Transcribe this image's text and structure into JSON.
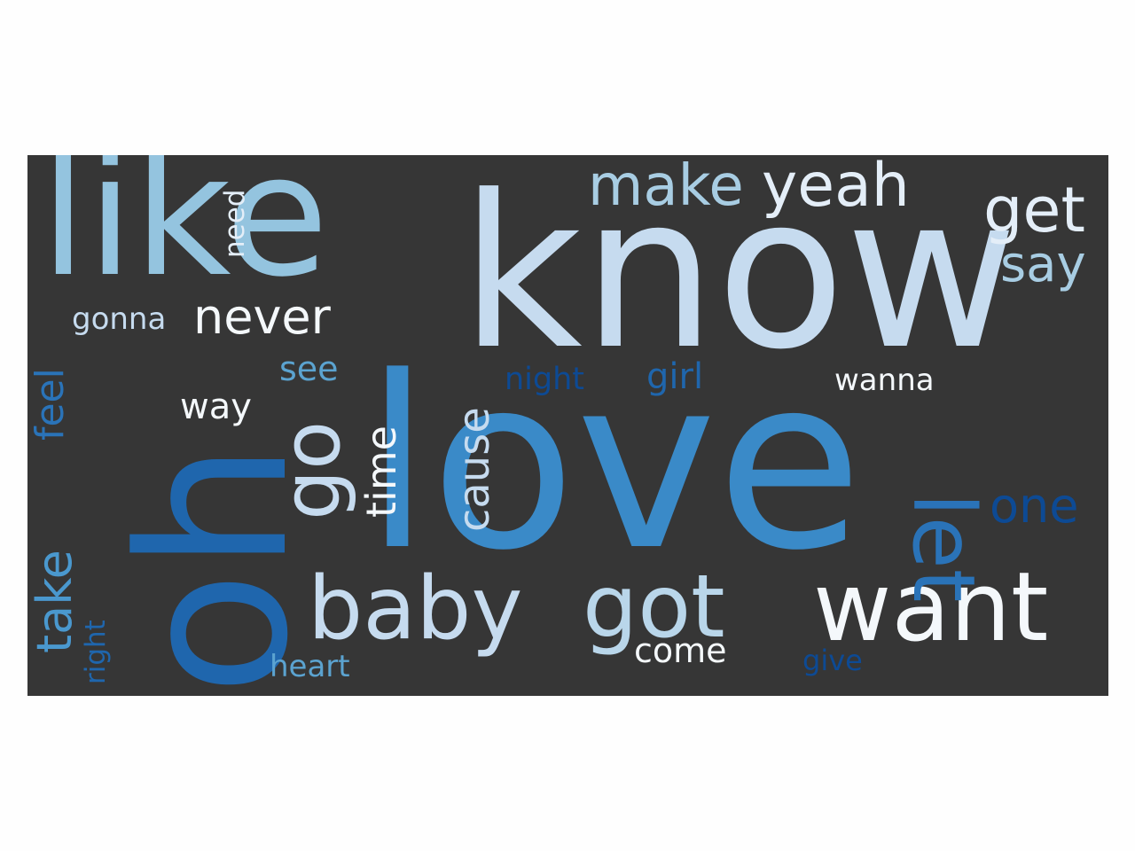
{
  "word_cloud": {
    "background": "#363636",
    "words": [
      {
        "text": "love",
        "color": "#3a8ac8"
      },
      {
        "text": "know",
        "color": "#c6dbef"
      },
      {
        "text": "oh",
        "color": "#1f66ad"
      },
      {
        "text": "like",
        "color": "#94c4df"
      },
      {
        "text": "want",
        "color": "#f4f8fb"
      },
      {
        "text": "baby",
        "color": "#c6dbef"
      },
      {
        "text": "got",
        "color": "#b9d6ea"
      },
      {
        "text": "go",
        "color": "#c6dbef"
      },
      {
        "text": "let",
        "color": "#2a73b8"
      },
      {
        "text": "get",
        "color": "#e4eef8"
      },
      {
        "text": "yeah",
        "color": "#e4eef8"
      },
      {
        "text": "make",
        "color": "#a8cde3"
      },
      {
        "text": "never",
        "color": "#f4f8fb"
      },
      {
        "text": "say",
        "color": "#a8cde3"
      },
      {
        "text": "one",
        "color": "#0d4a94"
      },
      {
        "text": "cause",
        "color": "#c6dbef"
      },
      {
        "text": "time",
        "color": "#f4f8fb"
      },
      {
        "text": "take",
        "color": "#4a98ce"
      },
      {
        "text": "feel",
        "color": "#2a73b8"
      },
      {
        "text": "girl",
        "color": "#1f66ad"
      },
      {
        "text": "night",
        "color": "#0d4a94"
      },
      {
        "text": "see",
        "color": "#5ba3d0"
      },
      {
        "text": "way",
        "color": "#f4f8fb"
      },
      {
        "text": "wanna",
        "color": "#f4f8fb"
      },
      {
        "text": "come",
        "color": "#f4f8fb"
      },
      {
        "text": "heart",
        "color": "#5ba3d0"
      },
      {
        "text": "give",
        "color": "#0d4a94"
      },
      {
        "text": "gonna",
        "color": "#c6dbef"
      },
      {
        "text": "need",
        "color": "#e4eef8"
      },
      {
        "text": "right",
        "color": "#1f66ad"
      }
    ]
  }
}
